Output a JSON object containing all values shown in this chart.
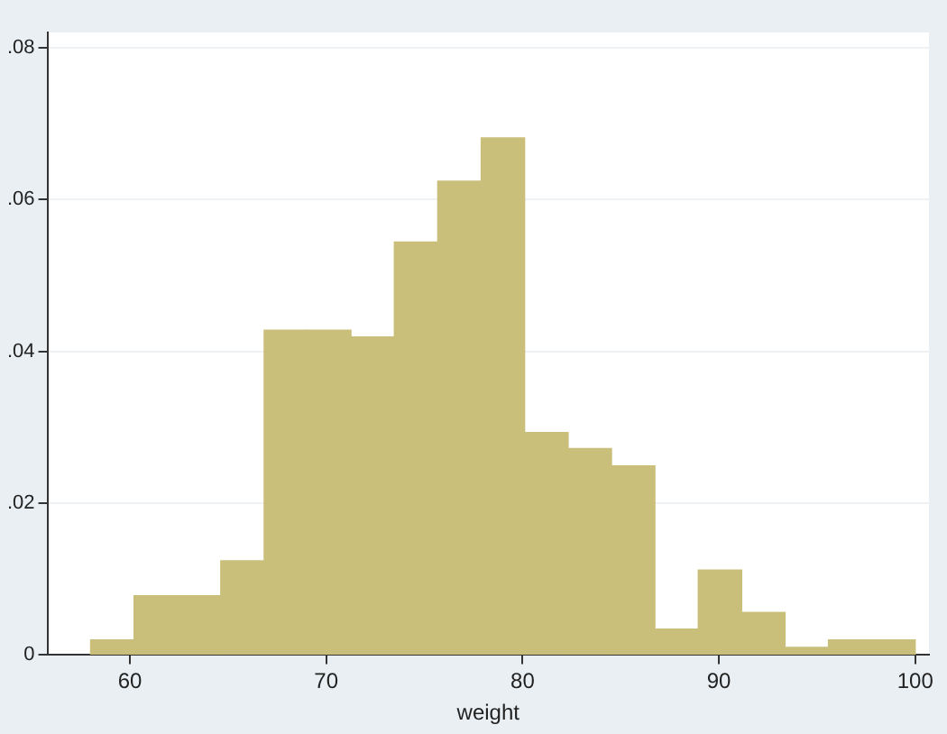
{
  "chart_data": {
    "type": "histogram",
    "xlabel": "weight",
    "bins": [
      58,
      60.21,
      62.42,
      64.63,
      66.84,
      69.05,
      71.26,
      73.47,
      75.68,
      77.89,
      80.11,
      82.32,
      84.53,
      86.74,
      88.95,
      91.16,
      93.37,
      95.58,
      97.79,
      100
    ],
    "values": [
      0.002,
      0.0078,
      0.0078,
      0.0124,
      0.0428,
      0.0428,
      0.0419,
      0.0544,
      0.0624,
      0.0681,
      0.0293,
      0.0272,
      0.0249,
      0.0034,
      0.0112,
      0.0056,
      0.001,
      0.002,
      0.002
    ],
    "color": "#c9bf7a",
    "xlim": [
      55.8,
      100.7
    ],
    "xticks": [
      60,
      70,
      80,
      90,
      100
    ],
    "ylim": [
      0,
      0.082
    ],
    "yticks": [
      0,
      {
        "value": 0.02,
        "label": ".02"
      },
      {
        "value": 0.04,
        "label": ".04"
      },
      {
        "value": 0.06,
        "label": ".06"
      },
      {
        "value": 0.08,
        "label": ".08"
      }
    ],
    "grid": "y"
  }
}
